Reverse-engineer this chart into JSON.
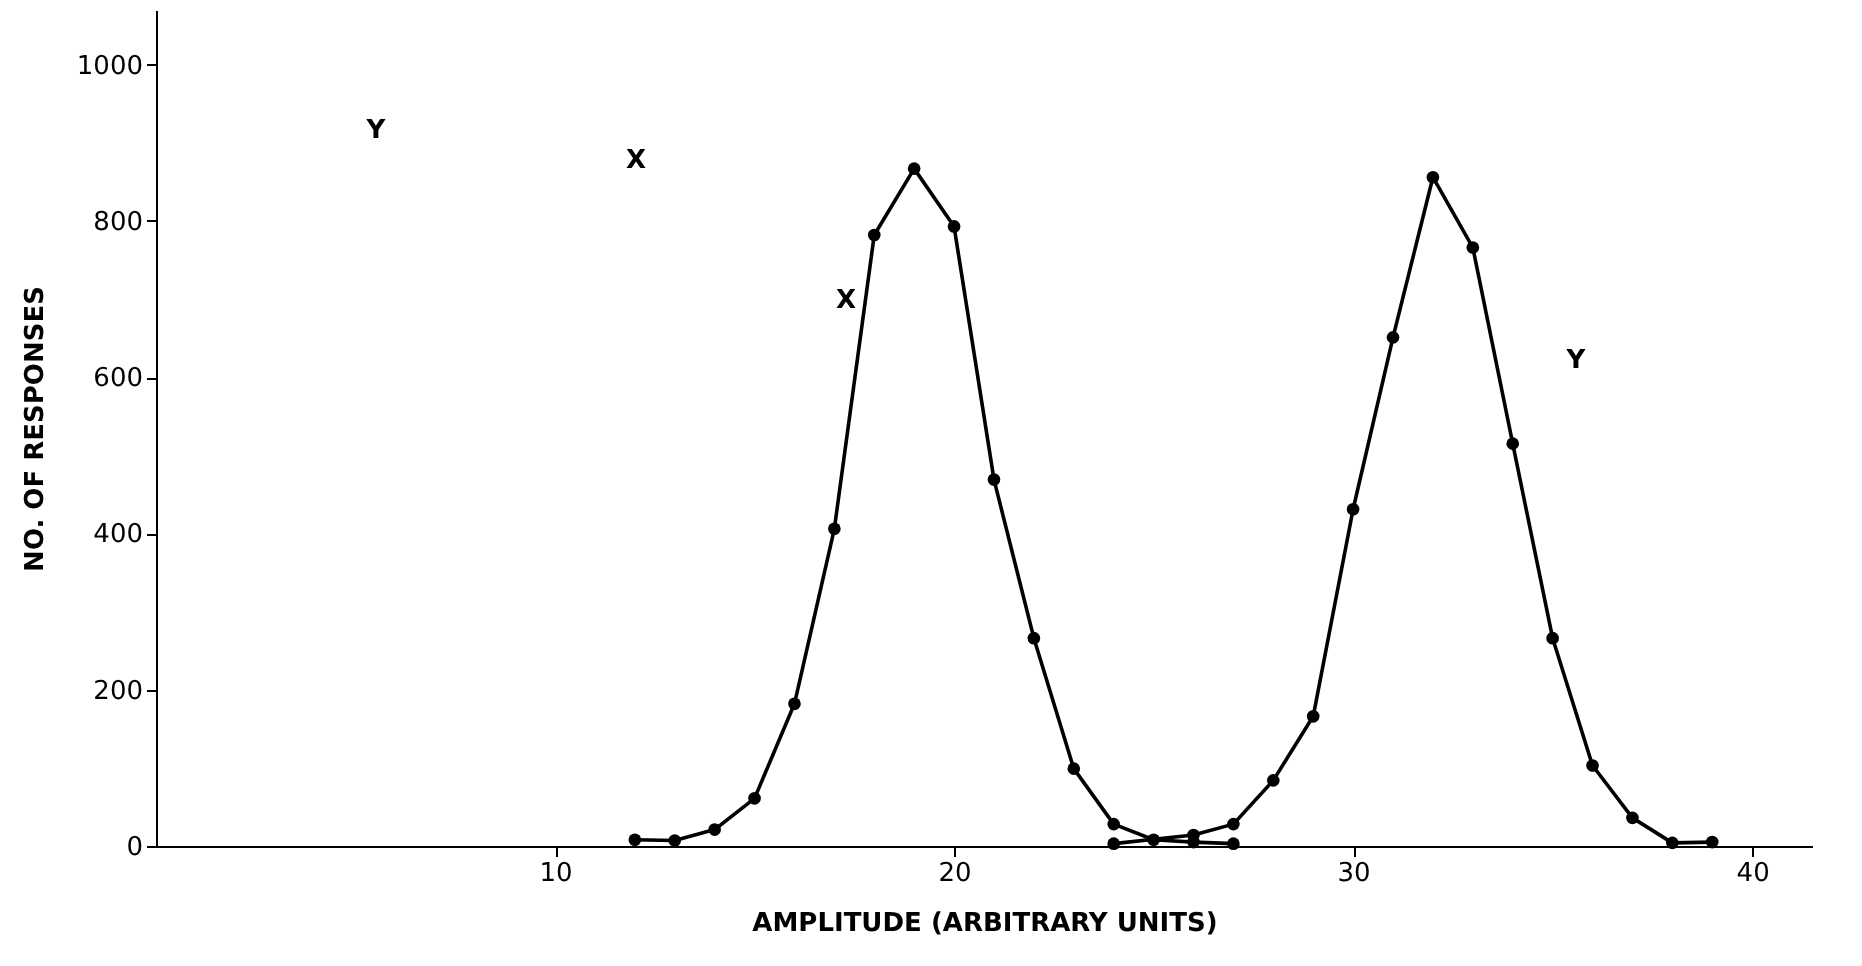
{
  "chart_data": {
    "type": "line",
    "xlabel": "AMPLITUDE (ARBITRARY UNITS)",
    "ylabel": "NO. OF RESPONSES",
    "series": [
      {
        "color": "#000000",
        "x": [
          12,
          13,
          14,
          15,
          16,
          17,
          18,
          19,
          20,
          21,
          22,
          23,
          24,
          25,
          26,
          27
        ],
        "values": [
          8,
          7,
          21,
          61,
          182,
          406,
          782,
          867,
          793,
          469,
          266,
          99,
          28,
          8,
          5,
          3
        ]
      },
      {
        "color": "#000000",
        "x": [
          24,
          26,
          27,
          28,
          29,
          30,
          31,
          32,
          33,
          34,
          35,
          36,
          37,
          38,
          39
        ],
        "values": [
          3,
          14,
          28,
          84,
          166,
          431,
          651,
          856,
          766,
          515,
          266,
          103,
          36,
          4,
          5
        ]
      }
    ],
    "xlim": [
      0,
      41.5
    ],
    "ylim": [
      0,
      1070
    ],
    "xticks": [
      10,
      20,
      30,
      40
    ],
    "yticks": [
      0,
      200,
      400,
      600,
      800,
      1000
    ],
    "grid": false,
    "marker": "circle",
    "line_style": "solid",
    "annotations": [
      "X",
      "Y",
      "Y",
      "X"
    ]
  }
}
